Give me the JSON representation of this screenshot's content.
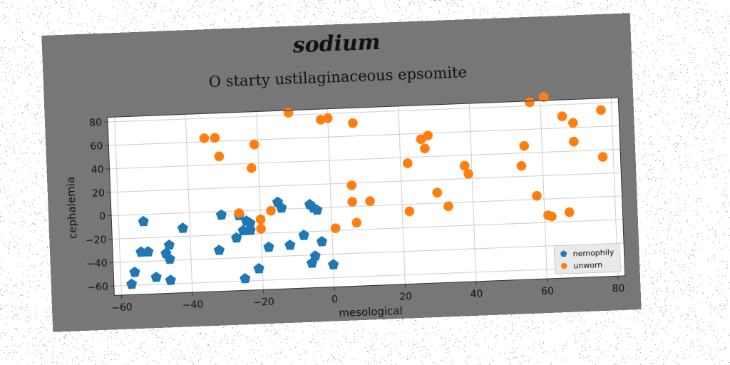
{
  "heading": "sodium",
  "chart_data": {
    "type": "scatter",
    "title": "O starty ustilaginaceous epsomite",
    "xlabel": "mesological",
    "ylabel": "cephalemia",
    "xlim": [
      -62,
      82
    ],
    "ylim": [
      -68,
      84
    ],
    "xticks": [
      -60,
      -40,
      -20,
      0,
      20,
      40,
      60,
      80
    ],
    "yticks": [
      -60,
      -40,
      -20,
      0,
      20,
      40,
      60,
      80
    ],
    "xtick_labels": [
      "−60",
      "−40",
      "−20",
      "0",
      "20",
      "40",
      "60",
      "80"
    ],
    "ytick_labels": [
      "−60",
      "−40",
      "−20",
      "0",
      "20",
      "40",
      "60",
      "80"
    ],
    "grid": true,
    "legend": {
      "position": "lower-right"
    },
    "series": [
      {
        "name": "nemophily",
        "marker": "pentagon",
        "color": "#1f77b4",
        "points": [
          [
            -53,
            -6
          ],
          [
            -54,
            -32
          ],
          [
            -52,
            -32
          ],
          [
            -46,
            -27
          ],
          [
            -47,
            -34
          ],
          [
            -46,
            -39
          ],
          [
            -56,
            -49
          ],
          [
            -57,
            -59
          ],
          [
            -50,
            -54
          ],
          [
            -46,
            -57
          ],
          [
            -42,
            -13
          ],
          [
            -32,
            -33
          ],
          [
            -31,
            -3
          ],
          [
            -27,
            -23
          ],
          [
            -26,
            -4
          ],
          [
            -25,
            -17
          ],
          [
            -25,
            -58
          ],
          [
            -24,
            -9
          ],
          [
            -23,
            -11
          ],
          [
            -23,
            -17
          ],
          [
            -21,
            -50
          ],
          [
            -18,
            -32
          ],
          [
            -15,
            6
          ],
          [
            -14,
            1
          ],
          [
            -12,
            -31
          ],
          [
            -8,
            -23
          ],
          [
            -6,
            3
          ],
          [
            -5,
            0
          ],
          [
            -4,
            -2
          ],
          [
            -5,
            -41
          ],
          [
            -6,
            -47
          ],
          [
            -3,
            -29
          ],
          [
            0,
            -49
          ]
        ]
      },
      {
        "name": "unworn",
        "marker": "circle",
        "color": "#ff7f0e",
        "points": [
          [
            -35,
            63
          ],
          [
            -32,
            63
          ],
          [
            -31,
            47
          ],
          [
            -21,
            56
          ],
          [
            -22,
            36
          ],
          [
            -26,
            -2
          ],
          [
            -20,
            -8
          ],
          [
            -20,
            -16
          ],
          [
            -17,
            -1
          ],
          [
            -11,
            82
          ],
          [
            -2,
            75
          ],
          [
            0,
            76
          ],
          [
            1,
            -18
          ],
          [
            7,
            71
          ],
          [
            6,
            18
          ],
          [
            6,
            4
          ],
          [
            7,
            -14
          ],
          [
            11,
            4
          ],
          [
            22,
            35
          ],
          [
            22,
            -6
          ],
          [
            26,
            55
          ],
          [
            27,
            47
          ],
          [
            28,
            58
          ],
          [
            30,
            9
          ],
          [
            33,
            -3
          ],
          [
            38,
            31
          ],
          [
            39,
            24
          ],
          [
            54,
            29
          ],
          [
            55,
            46
          ],
          [
            57,
            83
          ],
          [
            61,
            87
          ],
          [
            58,
            3
          ],
          [
            61,
            -14
          ],
          [
            62,
            -15
          ],
          [
            66,
            70
          ],
          [
            67,
            -12
          ],
          [
            69,
            64
          ],
          [
            69,
            48
          ],
          [
            77,
            74
          ],
          [
            77,
            34
          ]
        ]
      }
    ]
  },
  "colors": {
    "card_background": "#777777",
    "plot_background": "#ffffff",
    "grid": "#cccccc"
  }
}
